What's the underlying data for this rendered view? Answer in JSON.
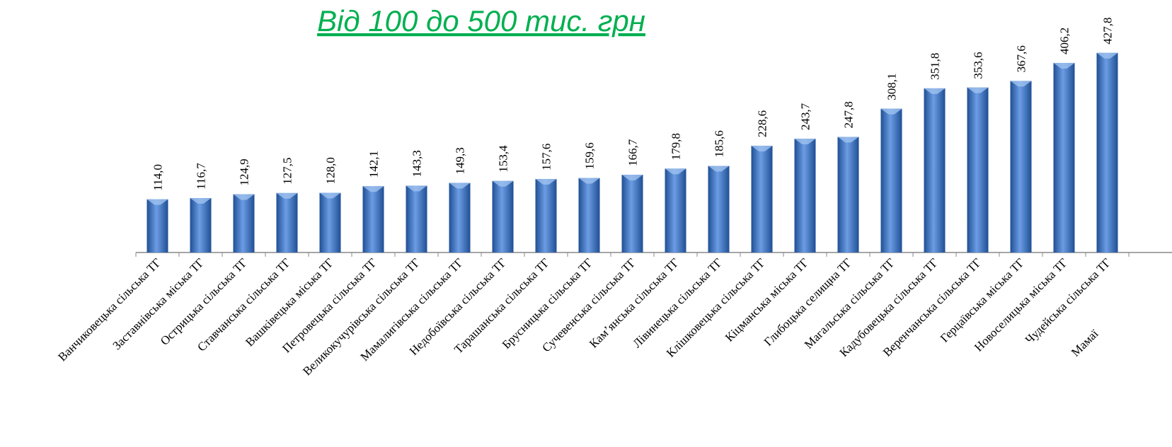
{
  "chart_data": {
    "type": "bar",
    "title": "Від 100 до 500 тис. грн",
    "categories": [
      "Ванчиковецька сільська ТГ",
      "Заставнівська міська ТГ",
      "Острицька сільська ТГ",
      "Ставчанська сільська ТГ",
      "Вашківецька міська ТГ",
      "Петровецька сільська ТГ",
      "Великокучурівська сільська ТГ",
      "Мамалигівська сільська ТГ",
      "Недобоївська сільська ТГ",
      "Тарашанська сільська ТГ",
      "Брусницька сільська ТГ",
      "Сучевенська сільська ТГ",
      "Кам’янська сільська ТГ",
      "Лівинецька сільська ТГ",
      "Клішковецька сільська ТГ",
      "Кіцманська міська ТГ",
      "Глибоцька селищна ТГ",
      "Магальська сільська ТГ",
      "Кадубовецька сільська ТГ",
      "Веренчанська сільська ТГ",
      "Герцаївська міська ТГ",
      "Новоселицька міська ТГ",
      "Чудейська сільська ТГ",
      "Мамаї"
    ],
    "values": [
      114.0,
      116.7,
      124.9,
      127.5,
      128.0,
      142.1,
      143.3,
      149.3,
      153.4,
      157.6,
      159.6,
      166.7,
      179.8,
      185.6,
      228.6,
      243.7,
      247.8,
      308.1,
      351.8,
      353.6,
      367.6,
      406.2,
      427.8,
      null
    ],
    "value_labels": [
      "114,0",
      "116,7",
      "124,9",
      "127,5",
      "128,0",
      "142,1",
      "143,3",
      "149,3",
      "153,4",
      "157,6",
      "159,6",
      "166,7",
      "179,8",
      "185,6",
      "228,6",
      "243,7",
      "247,8",
      "308,1",
      "351,8",
      "353,6",
      "367,6",
      "406,2",
      "427,8",
      null
    ],
    "color": "#4a7fd0",
    "ylim": [
      0,
      541
    ]
  }
}
